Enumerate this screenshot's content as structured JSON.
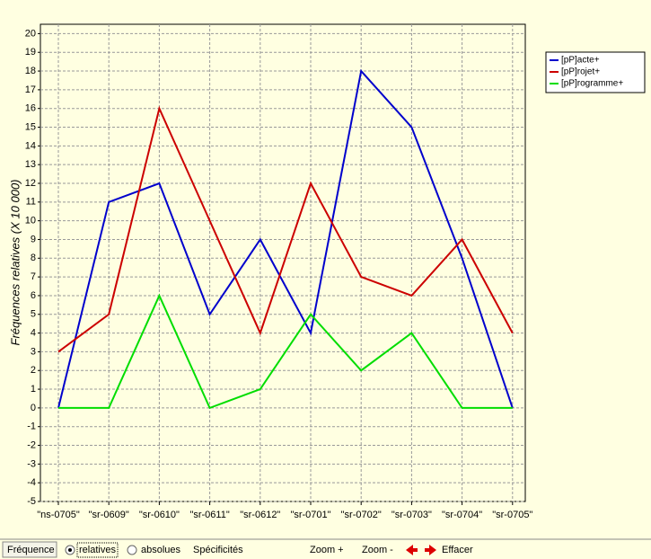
{
  "chart_data": {
    "type": "line",
    "y_label": "Fréquences relatives (X 10 000)",
    "categories": [
      "\"ns-0705\"",
      "\"sr-0609\"",
      "\"sr-0610\"",
      "\"sr-0611\"",
      "\"sr-0612\"",
      "\"sr-0701\"",
      "\"sr-0702\"",
      "\"sr-0703\"",
      "\"sr-0704\"",
      "\"sr-0705\""
    ],
    "series": [
      {
        "name": "[pP]acte+",
        "color": "#0000cc",
        "values": [
          0,
          11,
          12,
          5,
          9,
          4,
          18,
          15,
          8,
          0
        ]
      },
      {
        "name": "[pP]rojet+",
        "color": "#cc0000",
        "values": [
          3,
          5,
          16,
          10,
          4,
          12,
          7,
          6,
          9,
          4
        ]
      },
      {
        "name": "[pP]rogramme+",
        "color": "#00dd00",
        "values": [
          0,
          0,
          6,
          0,
          1,
          5,
          2,
          4,
          0,
          0
        ]
      }
    ],
    "ylim": [
      -5,
      20.5
    ],
    "yticks": [
      -5,
      -4,
      -3,
      -2,
      -1,
      0,
      1,
      2,
      3,
      4,
      5,
      6,
      7,
      8,
      9,
      10,
      11,
      12,
      13,
      14,
      15,
      16,
      17,
      18,
      19,
      20
    ],
    "grid": true
  },
  "toolbar": {
    "frequence": "Fréquence",
    "relatives": "relatives",
    "absolues": "absolues",
    "specificites": "Spécificités",
    "zoom_in": "Zoom +",
    "zoom_out": "Zoom -",
    "effacer": "Effacer"
  }
}
